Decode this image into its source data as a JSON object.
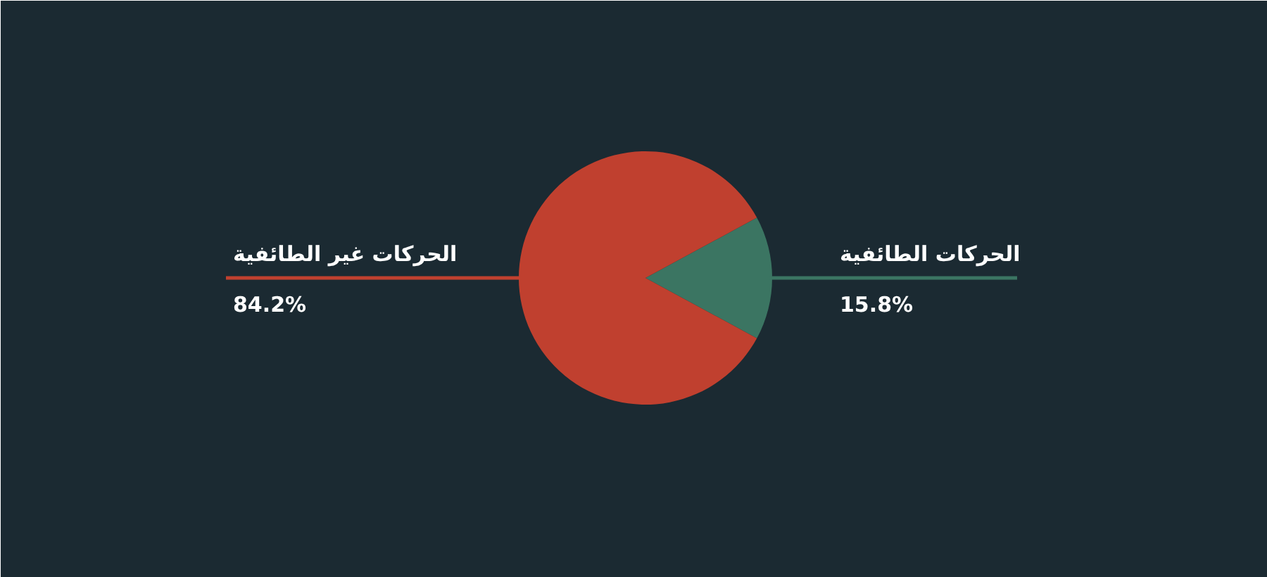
{
  "chart_data": {
    "type": "pie",
    "categories": [
      "الحركات الطائفية",
      "الحركات غير الطائفية"
    ],
    "values": [
      15.8,
      84.2
    ],
    "colors": [
      "#3b7562",
      "#c0402f"
    ],
    "value_labels": [
      "15.8%",
      "84.2%"
    ]
  }
}
